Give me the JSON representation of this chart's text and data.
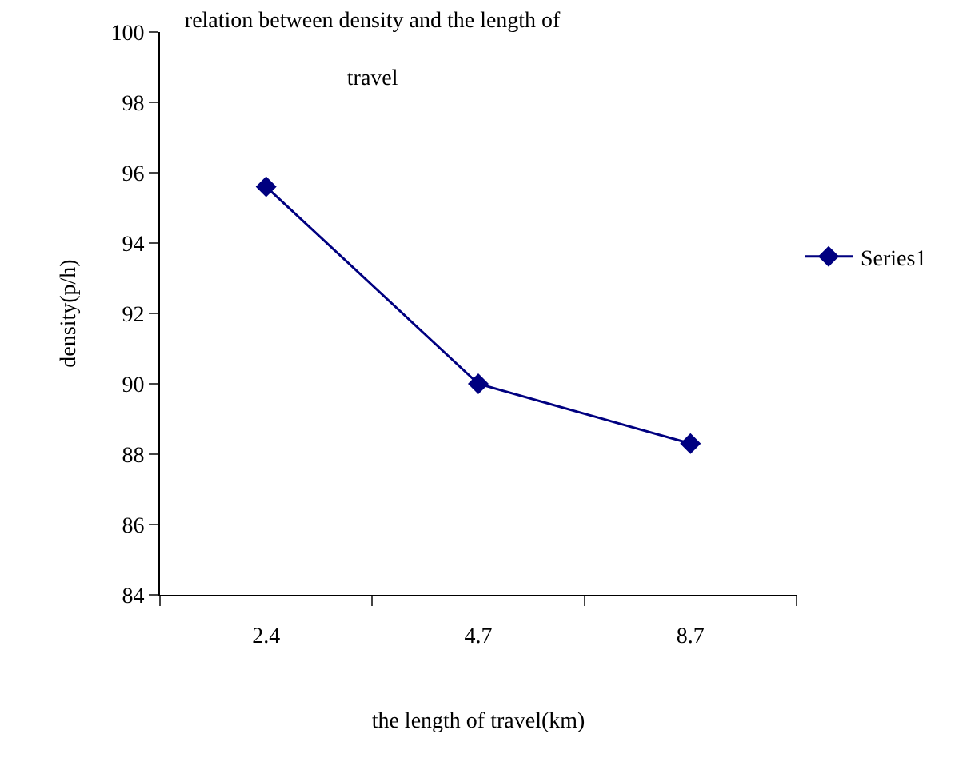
{
  "chart_data": {
    "type": "line",
    "title": "relation between density and the length of travel",
    "xlabel": "the length of travel(km)",
    "ylabel": "density(p/h)",
    "categories": [
      "2.4",
      "4.7",
      "8.7"
    ],
    "series": [
      {
        "name": "Series1",
        "color": "#000080",
        "values": [
          95.6,
          90.0,
          88.3
        ]
      }
    ],
    "ylim": [
      84,
      100
    ],
    "yticks": [
      84,
      86,
      88,
      90,
      92,
      94,
      96,
      98,
      100
    ],
    "grid": false,
    "legend": "right",
    "marker": "diamond",
    "line_style": "solid"
  }
}
